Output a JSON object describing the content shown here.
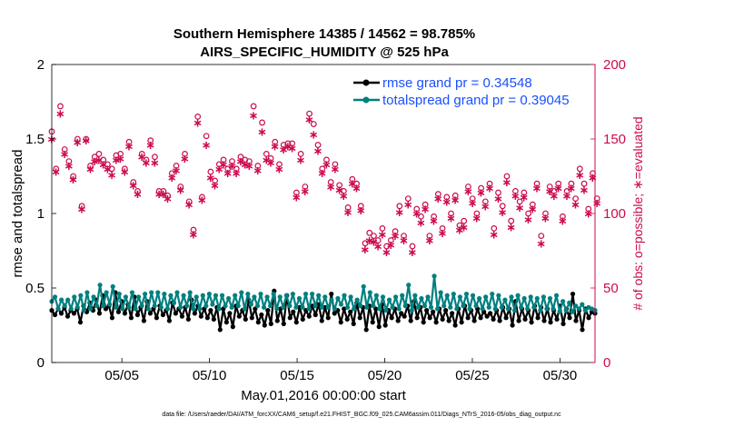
{
  "chart_data": {
    "type": "line",
    "title_line1": "Southern Hemisphere 14385 / 14562 = 98.785%",
    "title_line2": "AIRS_SPECIFIC_HUMIDITY @ 525 hPa",
    "xlabel": "May.01,2016 00:00:00 start",
    "ylabel_left": "rmse and totalspread",
    "ylabel_right": "# of obs: o=possible; ∗=evaluated",
    "footnote": "data file: /Users/raeder/DAI/ATM_forcXX/CAM6_setup/f.e21.FHIST_BGC.f09_025.CAM6assim.011/Diags_NTrS_2016-05/obs_diag_output.nc",
    "xlim": [
      1,
      32
    ],
    "ylim_left": [
      0,
      2
    ],
    "ylim_right": [
      0,
      200
    ],
    "x_ticks": [
      5,
      10,
      15,
      20,
      25,
      30
    ],
    "x_tick_labels": [
      "05/05",
      "05/10",
      "05/15",
      "05/20",
      "05/25",
      "05/30"
    ],
    "y_ticks_left": [
      0,
      0.5,
      1,
      1.5,
      2
    ],
    "y_tick_labels_left": [
      "0",
      "0.5",
      "1",
      "1.5",
      "2"
    ],
    "y_ticks_right": [
      0,
      50,
      100,
      150,
      200
    ],
    "y_tick_labels_right": [
      "0",
      "50",
      "100",
      "150",
      "200"
    ],
    "grid": false,
    "legend_position": "top-right",
    "colors": {
      "rmse": "#000000",
      "totalspread": "#008080",
      "obs": "#cc0a4f",
      "legend_text": "#1a4fff"
    },
    "series": [
      {
        "name": "rmse grand pr = 0.34548",
        "axis": "left",
        "values": [
          0.35,
          0.32,
          0.36,
          0.33,
          0.37,
          0.31,
          0.35,
          0.33,
          0.36,
          0.27,
          0.38,
          0.34,
          0.4,
          0.35,
          0.42,
          0.33,
          0.45,
          0.36,
          0.38,
          0.3,
          0.47,
          0.34,
          0.41,
          0.33,
          0.39,
          0.3,
          0.44,
          0.32,
          0.37,
          0.28,
          0.41,
          0.33,
          0.36,
          0.3,
          0.38,
          0.32,
          0.35,
          0.28,
          0.4,
          0.33,
          0.36,
          0.31,
          0.37,
          0.29,
          0.42,
          0.33,
          0.38,
          0.31,
          0.36,
          0.3,
          0.35,
          0.29,
          0.37,
          0.22,
          0.36,
          0.27,
          0.33,
          0.24,
          0.38,
          0.31,
          0.35,
          0.29,
          0.42,
          0.3,
          0.36,
          0.27,
          0.32,
          0.25,
          0.35,
          0.26,
          0.48,
          0.28,
          0.36,
          0.26,
          0.45,
          0.3,
          0.34,
          0.27,
          0.37,
          0.29,
          0.35,
          0.31,
          0.38,
          0.32,
          0.39,
          0.28,
          0.37,
          0.3,
          0.46,
          0.33,
          0.35,
          0.27,
          0.36,
          0.29,
          0.34,
          0.26,
          0.4,
          0.3,
          0.37,
          0.22,
          0.38,
          0.27,
          0.36,
          0.24,
          0.39,
          0.25,
          0.35,
          0.3,
          0.36,
          0.28,
          0.33,
          0.31,
          0.38,
          0.28,
          0.41,
          0.3,
          0.37,
          0.27,
          0.35,
          0.3,
          0.34,
          0.27,
          0.36,
          0.29,
          0.35,
          0.28,
          0.33,
          0.25,
          0.36,
          0.27,
          0.38,
          0.3,
          0.35,
          0.28,
          0.36,
          0.3,
          0.34,
          0.31,
          0.33,
          0.29,
          0.35,
          0.28,
          0.37,
          0.3,
          0.36,
          0.25,
          0.41,
          0.28,
          0.36,
          0.29,
          0.35,
          0.27,
          0.38,
          0.3,
          0.37,
          0.28,
          0.36,
          0.27,
          0.35,
          0.29,
          0.38,
          0.26,
          0.36,
          0.3,
          0.46,
          0.28,
          0.35,
          0.22,
          0.36,
          0.3,
          0.34,
          0.33
        ]
      },
      {
        "name": "totalspread grand pr = 0.39045",
        "axis": "left",
        "values": [
          0.41,
          0.44,
          0.36,
          0.42,
          0.38,
          0.42,
          0.36,
          0.44,
          0.37,
          0.45,
          0.35,
          0.47,
          0.36,
          0.44,
          0.38,
          0.52,
          0.38,
          0.47,
          0.39,
          0.51,
          0.37,
          0.46,
          0.36,
          0.44,
          0.37,
          0.47,
          0.36,
          0.44,
          0.38,
          0.46,
          0.36,
          0.47,
          0.38,
          0.47,
          0.37,
          0.46,
          0.36,
          0.45,
          0.4,
          0.47,
          0.37,
          0.45,
          0.38,
          0.47,
          0.36,
          0.44,
          0.36,
          0.45,
          0.38,
          0.46,
          0.39,
          0.45,
          0.36,
          0.45,
          0.38,
          0.43,
          0.37,
          0.45,
          0.38,
          0.47,
          0.36,
          0.46,
          0.39,
          0.44,
          0.38,
          0.46,
          0.37,
          0.44,
          0.38,
          0.46,
          0.36,
          0.44,
          0.37,
          0.45,
          0.38,
          0.46,
          0.37,
          0.43,
          0.37,
          0.46,
          0.36,
          0.46,
          0.38,
          0.45,
          0.37,
          0.44,
          0.37,
          0.42,
          0.36,
          0.43,
          0.39,
          0.45,
          0.37,
          0.44,
          0.36,
          0.42,
          0.38,
          0.51,
          0.37,
          0.47,
          0.38,
          0.45,
          0.36,
          0.44,
          0.35,
          0.42,
          0.37,
          0.44,
          0.36,
          0.45,
          0.38,
          0.52,
          0.35,
          0.45,
          0.37,
          0.43,
          0.38,
          0.44,
          0.37,
          0.58,
          0.36,
          0.47,
          0.38,
          0.45,
          0.37,
          0.46,
          0.36,
          0.44,
          0.38,
          0.46,
          0.36,
          0.45,
          0.38,
          0.43,
          0.36,
          0.44,
          0.37,
          0.46,
          0.36,
          0.45,
          0.37,
          0.42,
          0.36,
          0.44,
          0.35,
          0.45,
          0.37,
          0.43,
          0.36,
          0.44,
          0.37,
          0.43,
          0.35,
          0.44,
          0.36,
          0.43,
          0.36,
          0.45,
          0.34,
          0.41,
          0.35,
          0.4,
          0.34,
          0.38,
          0.36,
          0.39,
          0.35,
          0.37,
          0.36,
          0.35
        ]
      },
      {
        "name": "possible",
        "axis": "right",
        "marker": "o",
        "values": [
          155,
          130,
          172,
          143,
          135,
          125,
          150,
          105,
          150,
          132,
          138,
          140,
          136,
          133,
          130,
          139,
          140,
          130,
          148,
          121,
          115,
          140,
          136,
          149,
          138,
          115,
          115,
          112,
          127,
          132,
          118,
          140,
          108,
          89,
          165,
          111,
          152,
          128,
          122,
          133,
          136,
          130,
          135,
          130,
          138,
          136,
          135,
          172,
          132,
          161,
          140,
          137,
          148,
          133,
          146,
          147,
          147,
          114,
          140,
          118,
          167,
          160,
          146,
          130,
          136,
          121,
          133,
          119,
          115,
          104,
          123,
          120,
          105,
          80,
          87,
          85,
          82,
          90,
          78,
          82,
          88,
          105,
          85,
          110,
          78,
          103,
          98,
          106,
          85,
          98,
          113,
          90,
          111,
          100,
          112,
          92,
          95,
          118,
          110,
          100,
          117,
          108,
          120,
          90,
          114,
          105,
          125,
          95,
          115,
          108,
          114,
          100,
          106,
          120,
          85,
          100,
          118,
          115,
          120,
          98,
          115,
          120,
          110,
          130,
          120,
          103,
          127,
          110
        ],
        "x_start": 1.0,
        "x_step": 0.245
      },
      {
        "name": "evaluated",
        "axis": "right",
        "marker": "*",
        "values": [
          150,
          128,
          167,
          140,
          132,
          123,
          148,
          103,
          149,
          130,
          135,
          136,
          133,
          130,
          126,
          136,
          137,
          128,
          145,
          119,
          113,
          138,
          134,
          146,
          134,
          113,
          113,
          110,
          124,
          129,
          116,
          137,
          106,
          86,
          161,
          109,
          146,
          124,
          119,
          130,
          133,
          127,
          132,
          127,
          135,
          133,
          132,
          166,
          129,
          155,
          136,
          134,
          145,
          130,
          143,
          145,
          144,
          111,
          136,
          115,
          163,
          153,
          142,
          127,
          133,
          118,
          130,
          116,
          112,
          101,
          120,
          117,
          102,
          76,
          82,
          81,
          78,
          86,
          74,
          79,
          85,
          101,
          82,
          106,
          74,
          100,
          94,
          103,
          82,
          95,
          110,
          87,
          108,
          97,
          109,
          89,
          91,
          115,
          107,
          97,
          114,
          105,
          117,
          86,
          110,
          101,
          121,
          91,
          112,
          104,
          111,
          96,
          103,
          117,
          80,
          97,
          115,
          112,
          117,
          95,
          112,
          117,
          106,
          126,
          116,
          100,
          124,
          107
        ],
        "x_start": 1.0,
        "x_step": 0.245
      }
    ]
  }
}
